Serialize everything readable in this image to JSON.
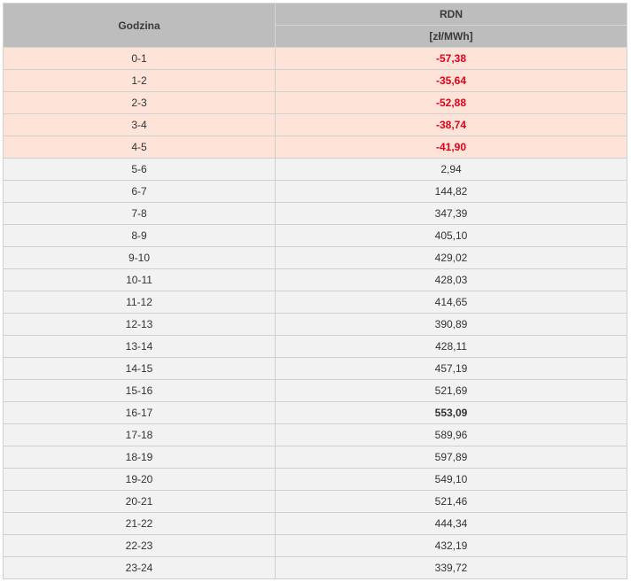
{
  "table": {
    "header": {
      "hour": "Godzina",
      "market": "RDN",
      "unit": "[zł/MWh]"
    },
    "rows": [
      {
        "hour": "0-1",
        "price": "-57,38",
        "negative": true
      },
      {
        "hour": "1-2",
        "price": "-35,64",
        "negative": true
      },
      {
        "hour": "2-3",
        "price": "-52,88",
        "negative": true
      },
      {
        "hour": "3-4",
        "price": "-38,74",
        "negative": true
      },
      {
        "hour": "4-5",
        "price": "-41,90",
        "negative": true
      },
      {
        "hour": "5-6",
        "price": "2,94",
        "negative": false
      },
      {
        "hour": "6-7",
        "price": "144,82",
        "negative": false
      },
      {
        "hour": "7-8",
        "price": "347,39",
        "negative": false
      },
      {
        "hour": "8-9",
        "price": "405,10",
        "negative": false
      },
      {
        "hour": "9-10",
        "price": "429,02",
        "negative": false
      },
      {
        "hour": "10-11",
        "price": "428,03",
        "negative": false
      },
      {
        "hour": "11-12",
        "price": "414,65",
        "negative": false
      },
      {
        "hour": "12-13",
        "price": "390,89",
        "negative": false
      },
      {
        "hour": "13-14",
        "price": "428,11",
        "negative": false
      },
      {
        "hour": "14-15",
        "price": "457,19",
        "negative": false
      },
      {
        "hour": "15-16",
        "price": "521,69",
        "negative": false
      },
      {
        "hour": "16-17",
        "price": "553,09",
        "negative": false,
        "bold": true
      },
      {
        "hour": "17-18",
        "price": "589,96",
        "negative": false
      },
      {
        "hour": "18-19",
        "price": "597,89",
        "negative": false
      },
      {
        "hour": "19-20",
        "price": "549,10",
        "negative": false
      },
      {
        "hour": "20-21",
        "price": "521,46",
        "negative": false
      },
      {
        "hour": "21-22",
        "price": "444,34",
        "negative": false
      },
      {
        "hour": "22-23",
        "price": "432,19",
        "negative": false
      },
      {
        "hour": "23-24",
        "price": "339,72",
        "negative": false
      }
    ]
  },
  "colors": {
    "header_bg": "#bdbdbd",
    "row_bg": "#f2f2f2",
    "negative_row_bg": "#fde3d8",
    "negative_text": "#e2001a"
  }
}
